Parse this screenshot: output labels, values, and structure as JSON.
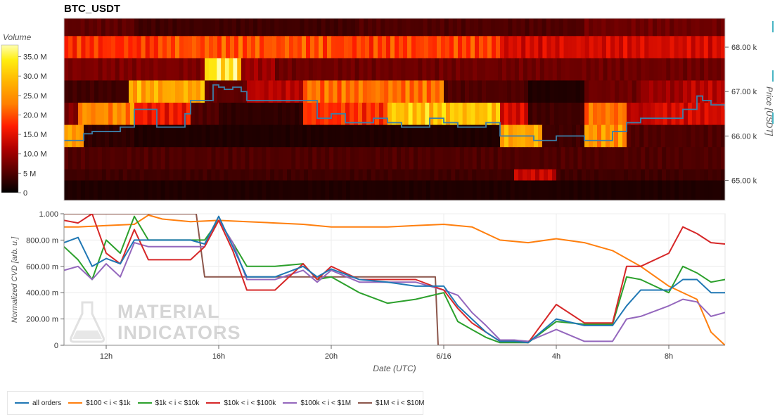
{
  "title": "BTC_USDT",
  "colorbar": {
    "label": "Volume",
    "ticks": [
      "35.0 M",
      "30.0 M",
      "25.0 M",
      "20.0 M",
      "15.0 M",
      "10.0 M",
      "5 M",
      "0"
    ],
    "tick_values": [
      35,
      30,
      25,
      20,
      15,
      10,
      5,
      0
    ]
  },
  "watermark": {
    "line1": "MATERIAL",
    "line2": "INDICATORS"
  },
  "colors": {
    "blue": "#1f77b4",
    "orange": "#ff7f0e",
    "green": "#2ca02c",
    "red": "#d62728",
    "purple": "#9467bd",
    "brown": "#8c564b",
    "price": "#3d7fa8"
  },
  "legend": [
    {
      "label": "all orders",
      "color": "#1f77b4"
    },
    {
      "label": "$100 < i < $1k",
      "color": "#ff7f0e"
    },
    {
      "label": "$1k < i < $10k",
      "color": "#2ca02c"
    },
    {
      "label": "$10k < i < $100k",
      "color": "#d62728"
    },
    {
      "label": "$100k < i < $1M",
      "color": "#9467bd"
    },
    {
      "label": "$1M < i < $10M",
      "color": "#8c564b"
    }
  ],
  "chart_data": [
    {
      "type": "heatmap",
      "title": "BTC_USDT",
      "ylabel": "Price [USDT]",
      "ylim": [
        64550,
        68650
      ],
      "y_ticks": [
        "68.00 k",
        "67.00 k",
        "66.00 k",
        "65.00 k"
      ],
      "y_tick_values": [
        68000,
        67000,
        66000,
        65000
      ],
      "x_range_hours": [
        10.5,
        34
      ],
      "price_bands": [
        68500,
        68000,
        67500,
        67000,
        66500,
        66000,
        65500,
        65000,
        64750
      ],
      "colorscale_max": 38,
      "segments_by_band": [
        [
          [
            10.5,
            13,
            6
          ],
          [
            13,
            21,
            4
          ],
          [
            21,
            29,
            5
          ],
          [
            29,
            34,
            7
          ]
        ],
        [
          [
            10.5,
            14,
            18
          ],
          [
            14,
            20,
            20
          ],
          [
            20,
            26,
            19
          ],
          [
            26,
            34,
            14
          ]
        ],
        [
          [
            10.5,
            15.5,
            8
          ],
          [
            15.5,
            16.8,
            34
          ],
          [
            16.8,
            18,
            10
          ],
          [
            18,
            34,
            7
          ]
        ],
        [
          [
            10.5,
            12.8,
            4
          ],
          [
            12.8,
            15.5,
            27
          ],
          [
            15.5,
            17,
            6
          ],
          [
            17,
            19,
            12
          ],
          [
            19,
            24,
            22
          ],
          [
            24,
            27,
            5
          ],
          [
            27,
            29,
            2
          ],
          [
            29,
            31,
            7
          ],
          [
            31,
            32.5,
            10
          ],
          [
            32.5,
            34,
            12
          ]
        ],
        [
          [
            10.5,
            11,
            8
          ],
          [
            11,
            13,
            24
          ],
          [
            13,
            15,
            16
          ],
          [
            15,
            16,
            5
          ],
          [
            16,
            19,
            3
          ],
          [
            19,
            22,
            18
          ],
          [
            22,
            26,
            30
          ],
          [
            26,
            27,
            14
          ],
          [
            27,
            29,
            4
          ],
          [
            29,
            30.5,
            22
          ],
          [
            30.5,
            31.5,
            12
          ],
          [
            31.5,
            34,
            14
          ]
        ],
        [
          [
            10.5,
            11.2,
            26
          ],
          [
            11.2,
            13,
            3
          ],
          [
            13,
            26,
            2
          ],
          [
            26,
            27.5,
            27
          ],
          [
            27.5,
            29,
            4
          ],
          [
            29,
            30.5,
            25
          ],
          [
            30.5,
            34,
            5
          ]
        ],
        [
          [
            10.5,
            34,
            5
          ]
        ],
        [
          [
            10.5,
            26.5,
            4
          ],
          [
            26.5,
            28,
            13
          ],
          [
            28,
            34,
            4
          ]
        ],
        [
          [
            10.5,
            34,
            2
          ]
        ]
      ],
      "series": [
        {
          "name": "price",
          "x": [
            10.5,
            11,
            11.2,
            11.5,
            12,
            12.5,
            13,
            13.5,
            13.8,
            14,
            14.5,
            14.8,
            15,
            15.3,
            15.5,
            15.8,
            16,
            16.2,
            16.5,
            16.8,
            17,
            17.5,
            18,
            18.5,
            19,
            19.5,
            20,
            20.5,
            21,
            21.5,
            22,
            22.5,
            23,
            23.5,
            24,
            24.5,
            25,
            25.5,
            25.9,
            26,
            26.5,
            27,
            27.2,
            27.5,
            28,
            28.5,
            29,
            29.3,
            29.6,
            30,
            30.5,
            31,
            31.5,
            32,
            32.5,
            33,
            33.2,
            33.5,
            34
          ],
          "y": [
            65900,
            65900,
            66050,
            66100,
            66100,
            66200,
            66600,
            66600,
            66200,
            66200,
            66200,
            66500,
            66800,
            66800,
            66800,
            67150,
            67100,
            67050,
            67100,
            67000,
            66800,
            66800,
            66800,
            66800,
            66800,
            66400,
            66500,
            66300,
            66300,
            66400,
            66300,
            66200,
            66200,
            66400,
            66300,
            66200,
            66200,
            66300,
            66300,
            66000,
            66000,
            66000,
            65900,
            65900,
            66000,
            66000,
            65900,
            65900,
            65900,
            66100,
            66300,
            66400,
            66400,
            66400,
            66600,
            66900,
            66800,
            66700,
            66600
          ]
        }
      ]
    },
    {
      "type": "line",
      "xlabel": "Date (UTC)",
      "ylabel": "Normalized CVD [arb. u.]",
      "ylim": [
        0,
        1.0
      ],
      "y_ticks": [
        "1.000",
        "800.00 m",
        "600.00 m",
        "400.00 m",
        "200.00 m",
        "0"
      ],
      "y_tick_values": [
        1.0,
        0.8,
        0.6,
        0.4,
        0.2,
        0
      ],
      "x_ticks": [
        "12h",
        "16h",
        "20h",
        "6/16",
        "4h",
        "8h"
      ],
      "x_tick_values": [
        12,
        16,
        20,
        24,
        28,
        32
      ],
      "x_range_hours": [
        10.5,
        34
      ],
      "series": [
        {
          "name": "all orders",
          "x": [
            10.5,
            11,
            11.5,
            12,
            12.5,
            13,
            13.5,
            14,
            15,
            15.5,
            16,
            16.5,
            17,
            17.5,
            18,
            19,
            19.5,
            20,
            21,
            22,
            23,
            24,
            24.5,
            25,
            25.5,
            26,
            26.5,
            27,
            28,
            29,
            30,
            30.5,
            31,
            32,
            32.5,
            33,
            33.5,
            34
          ],
          "y": [
            0.78,
            0.82,
            0.6,
            0.66,
            0.62,
            0.8,
            0.8,
            0.8,
            0.8,
            0.77,
            0.98,
            0.75,
            0.52,
            0.52,
            0.52,
            0.6,
            0.52,
            0.58,
            0.5,
            0.48,
            0.45,
            0.45,
            0.3,
            0.2,
            0.1,
            0.03,
            0.03,
            0.02,
            0.2,
            0.15,
            0.15,
            0.3,
            0.42,
            0.42,
            0.5,
            0.5,
            0.4,
            0.4
          ]
        },
        {
          "name": "$100 < i < $1k",
          "x": [
            10.5,
            11,
            12,
            13,
            13.5,
            14,
            15,
            16,
            17,
            18,
            19,
            20,
            21,
            22,
            23,
            24,
            25,
            26,
            27,
            28,
            29,
            30,
            31,
            32,
            33,
            33.5,
            34
          ],
          "y": [
            0.9,
            0.9,
            0.91,
            0.92,
            0.99,
            0.96,
            0.94,
            0.95,
            0.94,
            0.93,
            0.92,
            0.9,
            0.9,
            0.9,
            0.91,
            0.92,
            0.9,
            0.8,
            0.78,
            0.81,
            0.78,
            0.72,
            0.6,
            0.45,
            0.35,
            0.1,
            0.0
          ]
        },
        {
          "name": "$1k < i < $10k",
          "x": [
            10.5,
            11,
            11.5,
            12,
            12.5,
            13,
            13.5,
            14,
            15,
            15.5,
            16,
            16.5,
            17,
            17.5,
            18,
            19,
            19.5,
            20,
            21,
            22,
            23,
            24,
            24.5,
            25,
            25.5,
            26,
            26.5,
            27,
            28,
            29,
            30,
            30.5,
            31,
            32,
            32.5,
            33,
            33.5,
            34
          ],
          "y": [
            0.75,
            0.65,
            0.5,
            0.8,
            0.7,
            0.98,
            0.8,
            0.8,
            0.8,
            0.8,
            0.95,
            0.78,
            0.6,
            0.6,
            0.6,
            0.62,
            0.5,
            0.52,
            0.4,
            0.32,
            0.35,
            0.4,
            0.18,
            0.12,
            0.06,
            0.02,
            0.02,
            0.02,
            0.18,
            0.16,
            0.16,
            0.52,
            0.5,
            0.4,
            0.6,
            0.55,
            0.48,
            0.5
          ]
        },
        {
          "name": "$10k < i < $100k",
          "x": [
            10.5,
            11,
            11.5,
            12,
            12.5,
            13,
            13.5,
            14,
            15,
            15.5,
            16,
            16.5,
            17,
            17.5,
            18,
            19,
            19.5,
            20,
            21,
            22,
            23,
            24,
            24.5,
            25,
            25.5,
            26,
            26.5,
            27,
            28,
            29,
            30,
            30.5,
            31,
            32,
            32.5,
            33,
            33.5,
            34
          ],
          "y": [
            0.95,
            0.93,
            1.0,
            0.7,
            0.62,
            0.88,
            0.65,
            0.65,
            0.65,
            0.75,
            0.95,
            0.72,
            0.42,
            0.42,
            0.42,
            0.62,
            0.5,
            0.6,
            0.5,
            0.5,
            0.5,
            0.42,
            0.28,
            0.17,
            0.1,
            0.03,
            0.03,
            0.02,
            0.31,
            0.17,
            0.17,
            0.6,
            0.6,
            0.7,
            0.9,
            0.85,
            0.78,
            0.77
          ]
        },
        {
          "name": "$100k < i < $1M",
          "x": [
            10.5,
            11,
            11.5,
            12,
            12.5,
            13,
            13.5,
            14,
            15,
            15.5,
            16,
            16.5,
            17,
            17.5,
            18,
            19,
            19.5,
            20,
            21,
            22,
            23,
            24,
            24.5,
            25,
            25.5,
            26,
            26.5,
            27,
            28,
            29,
            30,
            30.5,
            31,
            32,
            32.5,
            33,
            33.5,
            34
          ],
          "y": [
            0.57,
            0.6,
            0.5,
            0.62,
            0.52,
            0.78,
            0.75,
            0.75,
            0.75,
            0.75,
            0.95,
            0.78,
            0.5,
            0.5,
            0.5,
            0.57,
            0.48,
            0.57,
            0.48,
            0.48,
            0.48,
            0.42,
            0.38,
            0.25,
            0.15,
            0.04,
            0.04,
            0.03,
            0.12,
            0.03,
            0.03,
            0.2,
            0.22,
            0.3,
            0.35,
            0.33,
            0.22,
            0.25
          ]
        },
        {
          "name": "$1M < i < $10M",
          "x": [
            10.5,
            11,
            15,
            15.2,
            15.5,
            16,
            17,
            18,
            19,
            20,
            21,
            22,
            23,
            23.7,
            23.8,
            24,
            34
          ],
          "y": [
            1.0,
            1.0,
            1.0,
            1.0,
            0.52,
            0.52,
            0.52,
            0.52,
            0.52,
            0.52,
            0.52,
            0.52,
            0.52,
            0.52,
            0.0,
            0.0,
            0.0
          ]
        }
      ]
    }
  ]
}
